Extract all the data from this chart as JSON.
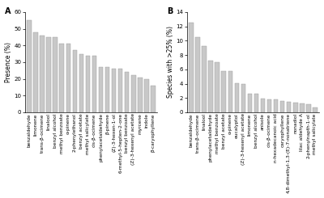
{
  "panel_a": {
    "title": "A",
    "ylabel": "Presence (%)",
    "ylim": [
      0,
      60
    ],
    "yticks": [
      0,
      10,
      20,
      30,
      40,
      50,
      60
    ],
    "categories": [
      "benzaldehyde",
      "limonene",
      "trans-β-ocimene",
      "linalool",
      "benzyl alcohol",
      "methyl benzoate",
      "α-pinene",
      "2-phenylethanol",
      "benzyl acetate",
      "methyl salicylate",
      "cis-β-ocimene",
      "phenylacetaldehyde",
      "β-pinene",
      "(Z)-3-hexen-1-ol",
      "6-methyl-5-hepten-2-one",
      "benzyl benzoate",
      "(Z)-3-hexenyl acetate",
      "myrcene",
      "indole",
      "β-caryophyllene"
    ],
    "values": [
      55,
      48,
      46,
      45,
      45,
      41,
      41,
      37,
      35,
      34,
      34,
      27,
      27,
      26,
      26,
      24,
      22,
      21,
      20,
      16
    ]
  },
  "panel_b": {
    "title": "B",
    "ylabel": "Species with >25% (%)",
    "ylim": [
      0,
      14
    ],
    "yticks": [
      0,
      2,
      4,
      6,
      8,
      10,
      12,
      14
    ],
    "categories": [
      "benzaldehyde",
      "trans-β-ocimene",
      "linalool",
      "phenylacetaldehyde",
      "methyl benzoate",
      "benzyl acetate",
      "α-pinene",
      "eucalyptol",
      "(Z)-3-hexenyl acetate",
      "limonene",
      "benzyl alcohol",
      "anisole",
      "cis-β-ocimene",
      "n-hexadecanoic acid",
      "caryophyllene",
      "4,8-dimethyl-1,3-(E)-7-nonatriene",
      "nonadiol",
      "lilac aldehyde A",
      "2-phenylnapth-1-ol",
      "methyl salicylate"
    ],
    "values": [
      12.5,
      10.5,
      9.2,
      7.2,
      7.0,
      5.8,
      5.8,
      4.1,
      4.0,
      2.6,
      2.6,
      1.9,
      1.8,
      1.8,
      1.6,
      1.5,
      1.3,
      1.2,
      1.1,
      0.7
    ]
  },
  "bar_color": "#c8c8c8",
  "bar_edgecolor": "#999999",
  "bar_linewidth": 0.3,
  "bar_width": 0.7,
  "font_size": 4.2,
  "label_fontsize": 5.5,
  "tick_fontsize": 5.0,
  "title_fontsize": 7,
  "background_color": "#ffffff"
}
